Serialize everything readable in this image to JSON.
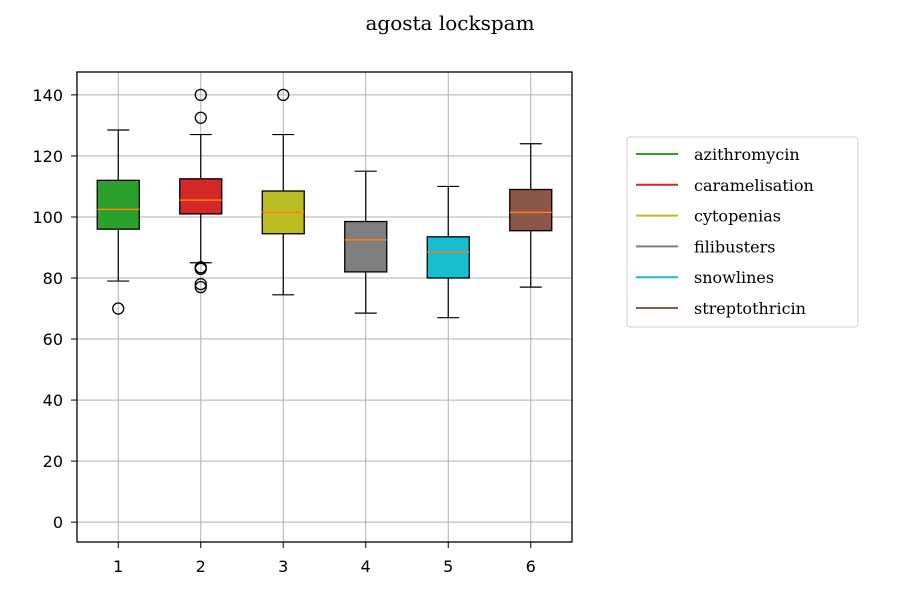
{
  "chart_data": {
    "type": "box",
    "title": "agosta lockspam",
    "xlabel": "",
    "ylabel": "",
    "categories": [
      "1",
      "2",
      "3",
      "4",
      "5",
      "6"
    ],
    "ylim": [
      -6.5,
      147.5
    ],
    "yticks": [
      0,
      20,
      40,
      60,
      80,
      100,
      120,
      140
    ],
    "grid": true,
    "legend_position": "right",
    "series": [
      {
        "name": "azithromycin",
        "color": "#2ca02c",
        "q1": 96,
        "median": 102.5,
        "q3": 112,
        "whisker_low": 79,
        "whisker_high": 128.5,
        "outliers": [
          70
        ]
      },
      {
        "name": "caramelisation",
        "color": "#d62728",
        "q1": 101,
        "median": 105.5,
        "q3": 112.5,
        "whisker_low": 85,
        "whisker_high": 127,
        "outliers": [
          140,
          132.5,
          83.5,
          83,
          78,
          77
        ]
      },
      {
        "name": "cytopenias",
        "color": "#bcbd22",
        "q1": 94.5,
        "median": 101.5,
        "q3": 108.5,
        "whisker_low": 74.5,
        "whisker_high": 127,
        "outliers": [
          140
        ]
      },
      {
        "name": "filibusters",
        "color": "#7f7f7f",
        "q1": 82,
        "median": 92.5,
        "q3": 98.5,
        "whisker_low": 68.5,
        "whisker_high": 115,
        "outliers": []
      },
      {
        "name": "snowlines",
        "color": "#17becf",
        "q1": 80,
        "median": 88.5,
        "q3": 93.5,
        "whisker_low": 67,
        "whisker_high": 110,
        "outliers": []
      },
      {
        "name": "streptothricin",
        "color": "#8c564b",
        "q1": 95.5,
        "median": 101.5,
        "q3": 109,
        "whisker_low": 77,
        "whisker_high": 124,
        "outliers": []
      }
    ],
    "median_color": "#ff7f0e"
  }
}
